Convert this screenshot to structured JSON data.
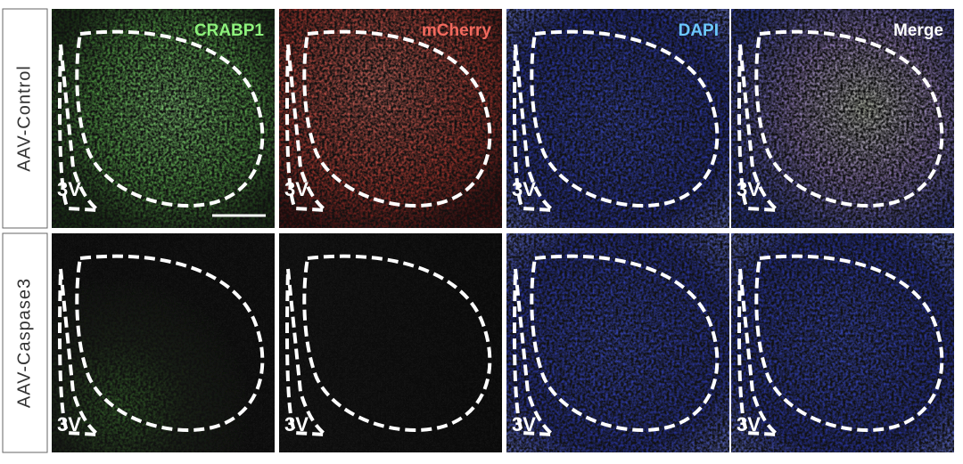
{
  "rows": [
    {
      "label": "AAV-Control",
      "cells": [
        {
          "title": "CRABP1",
          "region": "3V"
        },
        {
          "title": "mCherry",
          "region": "3V"
        },
        {
          "title": "DAPI",
          "region": "3V"
        },
        {
          "title": "Merge",
          "region": "3V"
        }
      ]
    },
    {
      "label": "AAV-Caspase3",
      "cells": [
        {
          "region": "3V"
        },
        {
          "region": "3V"
        },
        {
          "region": "3V"
        },
        {
          "region": "3V"
        }
      ]
    }
  ]
}
